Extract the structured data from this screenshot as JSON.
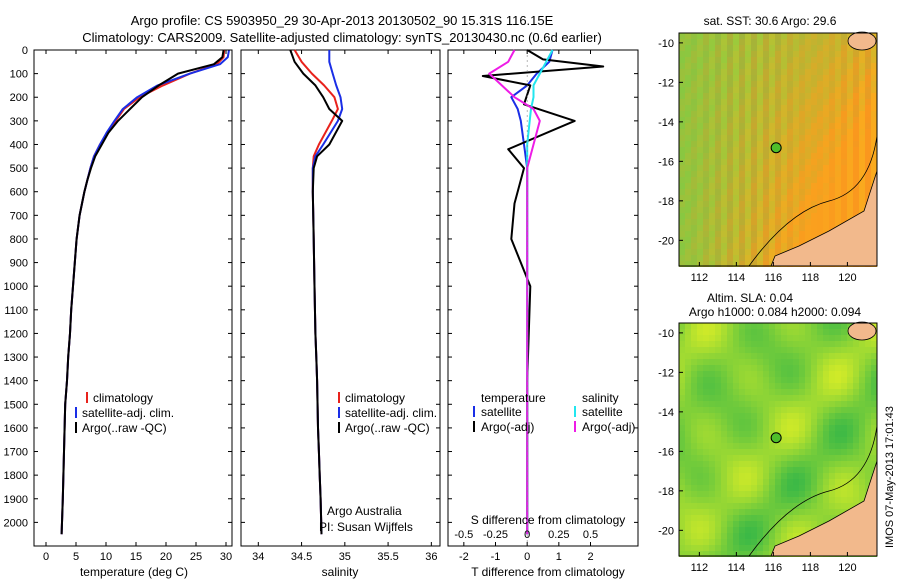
{
  "header": {
    "title_line1": "Argo profile: CS 5903950_29 30-Apr-2013 20130502_90 15.31S 116.15E",
    "title_line2": "Climatology: CARS2009. Satellite-adjusted climatology: synTS_20130430.nc (0.6d earlier)"
  },
  "colors": {
    "climatology": "#e8221c",
    "satellite": "#1a2ee6",
    "argo": "#000000",
    "salinity_satellite": "#22e6ef",
    "salinity_argo": "#ee1ce6",
    "land": "#f2b98c"
  },
  "depth_ticks": [
    "0",
    "100",
    "200",
    "300",
    "400",
    "500",
    "600",
    "700",
    "800",
    "900",
    "1000",
    "1100",
    "1200",
    "1300",
    "1400",
    "1500",
    "1600",
    "1700",
    "1800",
    "1900",
    "2000"
  ],
  "panels": {
    "temperature": {
      "xlabel": "temperature (deg C)",
      "xticks": [
        "0",
        "5",
        "10",
        "15",
        "20",
        "25",
        "30"
      ],
      "legend": [
        "climatology",
        "satellite-adj. clim.",
        "Argo(..raw -QC)"
      ]
    },
    "salinity": {
      "xlabel": "salinity",
      "xticks": [
        "34",
        "34.5",
        "35",
        "35.5",
        "36"
      ],
      "legend": [
        "climatology",
        "satellite-adj. clim.",
        "Argo(..raw -QC)"
      ],
      "credit_line1": "Argo Australia",
      "credit_line2": "PI: Susan Wijffels"
    },
    "difference": {
      "xlabel": "T difference from climatology",
      "xticks": [
        "-2",
        "-1",
        "0",
        "1",
        "2"
      ],
      "s_axis_label": "S difference from climatology",
      "s_ticks": [
        "-0.5",
        "-0.25",
        "0",
        "0.25",
        "0.5"
      ],
      "legend_temperature_header": "temperature",
      "legend_temperature": [
        "satellite",
        "Argo(-adj)"
      ],
      "legend_salinity_header": "salinity",
      "legend_salinity": [
        "satellite",
        "Argo(-adj)"
      ]
    }
  },
  "maps": {
    "sst": {
      "title": "sat. SST: 30.6  Argo: 29.6"
    },
    "sla": {
      "title_line1": "Altim. SLA: 0.04",
      "title_line2": "Argo h1000: 0.084 h2000: 0.094"
    },
    "yticks": [
      "-10",
      "-12",
      "-14",
      "-16",
      "-18",
      "-20"
    ],
    "xticks": [
      "112",
      "114",
      "116",
      "118",
      "120"
    ]
  },
  "side_stamp": "IMOS 07-May-2013 17:01:43",
  "chart_data": [
    {
      "type": "line",
      "title": "",
      "xlabel": "temperature (deg C)",
      "ylabel": "",
      "xlim": [
        -2,
        31
      ],
      "ylim": [
        2100,
        0
      ],
      "series": [
        {
          "name": "climatology",
          "x": [
            29.7,
            29.6,
            28.5,
            24,
            19.5,
            15.6,
            13,
            11.6,
            10.2,
            9,
            8,
            7.4,
            6.9,
            6.4,
            6,
            5.6,
            5.1,
            4.8,
            4.5,
            4.2,
            4,
            3.7,
            3.5,
            3.2,
            3,
            2.8,
            2.6
          ],
          "y": [
            0,
            30,
            60,
            100,
            150,
            200,
            250,
            300,
            350,
            400,
            450,
            500,
            550,
            600,
            650,
            700,
            800,
            900,
            1000,
            1100,
            1200,
            1300,
            1400,
            1500,
            1700,
            1900,
            2050
          ]
        },
        {
          "name": "satellite-adj. clim.",
          "x": [
            30.5,
            30.3,
            29,
            24,
            18.6,
            15.2,
            12.8,
            11.4,
            10.1,
            9,
            8,
            7.4,
            6.9,
            6.4,
            6,
            5.6,
            5.1,
            4.8,
            4.5,
            4.2,
            4,
            3.7,
            3.5,
            3.2,
            3,
            2.8,
            2.6
          ],
          "y": [
            0,
            30,
            60,
            100,
            150,
            200,
            250,
            300,
            350,
            400,
            450,
            500,
            550,
            600,
            650,
            700,
            800,
            900,
            1000,
            1100,
            1200,
            1300,
            1400,
            1500,
            1700,
            1900,
            2050
          ]
        },
        {
          "name": "Argo(..raw -QC)",
          "x": [
            29.6,
            29.4,
            28,
            22,
            18.8,
            16,
            14,
            12,
            10.4,
            9.3,
            8.2,
            7.5,
            6.9,
            6.4,
            6,
            5.6,
            5.1,
            4.8,
            4.5,
            4.2,
            4,
            3.7,
            3.5,
            3.2,
            3,
            2.8,
            2.6
          ],
          "y": [
            0,
            30,
            60,
            100,
            150,
            200,
            250,
            300,
            350,
            400,
            450,
            500,
            550,
            600,
            650,
            700,
            800,
            900,
            1000,
            1100,
            1200,
            1300,
            1400,
            1500,
            1700,
            1900,
            2050
          ]
        }
      ]
    },
    {
      "type": "line",
      "title": "",
      "xlabel": "salinity",
      "ylabel": "",
      "xlim": [
        33.8,
        36.1
      ],
      "ylim": [
        2100,
        0
      ],
      "series": [
        {
          "name": "climatology",
          "x": [
            34.42,
            34.5,
            34.62,
            34.76,
            34.88,
            34.92,
            34.85,
            34.7,
            34.64,
            34.63,
            34.63,
            34.64,
            34.65,
            34.66,
            34.67,
            34.68,
            34.69,
            34.7,
            34.71,
            34.72,
            34.73
          ],
          "y": [
            0,
            50,
            100,
            150,
            200,
            250,
            300,
            400,
            450,
            500,
            600,
            800,
            1000,
            1200,
            1300,
            1400,
            1600,
            1700,
            1800,
            1900,
            2050
          ]
        },
        {
          "name": "satellite-adj. clim.",
          "x": [
            34.82,
            34.82,
            34.86,
            34.9,
            34.95,
            34.97,
            34.92,
            34.75,
            34.66,
            34.63,
            34.63,
            34.64,
            34.65,
            34.66,
            34.67,
            34.68,
            34.69,
            34.7,
            34.71,
            34.72,
            34.73
          ],
          "y": [
            0,
            50,
            100,
            150,
            200,
            250,
            300,
            400,
            450,
            500,
            600,
            800,
            1000,
            1200,
            1300,
            1400,
            1600,
            1700,
            1800,
            1900,
            2050
          ]
        },
        {
          "name": "Argo(..raw -QC)",
          "x": [
            34.37,
            34.42,
            34.52,
            34.66,
            34.75,
            34.82,
            34.97,
            34.82,
            34.68,
            34.64,
            34.63,
            34.64,
            34.65,
            34.66,
            34.67,
            34.68,
            34.69,
            34.7,
            34.71,
            34.72,
            34.73
          ],
          "y": [
            0,
            50,
            100,
            150,
            200,
            250,
            300,
            400,
            450,
            500,
            600,
            800,
            1000,
            1200,
            1300,
            1400,
            1600,
            1700,
            1800,
            1900,
            2050
          ]
        }
      ]
    },
    {
      "type": "line",
      "title": "",
      "xlabel": "T difference from climatology",
      "ylabel": "",
      "xlim": [
        -2.5,
        3.5
      ],
      "ylim": [
        2100,
        0
      ],
      "series": [
        {
          "name": "temperature satellite",
          "x": [
            0.8,
            0.7,
            0.3,
            0,
            -0.5,
            -0.3,
            -0.2,
            -0.1,
            0,
            0,
            0,
            0,
            0,
            0,
            0
          ],
          "y": [
            0,
            50,
            100,
            150,
            200,
            250,
            300,
            400,
            500,
            600,
            800,
            1000,
            1400,
            1800,
            2050
          ]
        },
        {
          "name": "temperature Argo(-adj)",
          "x": [
            0,
            0.5,
            2.4,
            -1.4,
            0.1,
            -0.1,
            1.5,
            -0.6,
            -0.1,
            -0.4,
            -0.5,
            0.1,
            0,
            0,
            0
          ],
          "y": [
            0,
            40,
            70,
            110,
            150,
            230,
            300,
            420,
            500,
            650,
            800,
            1000,
            1400,
            1800,
            2050
          ]
        },
        {
          "name": "salinity satellite",
          "x": [
            0.2,
            0.15,
            0.1,
            0.05,
            0.05,
            0.03,
            0.02,
            0,
            0,
            0,
            0,
            0,
            0,
            0,
            0
          ],
          "y": [
            0,
            50,
            100,
            150,
            200,
            250,
            300,
            400,
            500,
            600,
            800,
            1000,
            1400,
            1800,
            2050
          ]
        },
        {
          "name": "salinity Argo(-adj)",
          "x": [
            -0.1,
            -0.15,
            -0.3,
            -0.2,
            -0.1,
            0.05,
            0.1,
            0.05,
            0,
            0,
            0,
            0,
            0,
            0,
            0
          ],
          "y": [
            0,
            50,
            100,
            150,
            200,
            250,
            300,
            400,
            500,
            600,
            800,
            1000,
            1400,
            1800,
            2050
          ]
        }
      ]
    }
  ]
}
